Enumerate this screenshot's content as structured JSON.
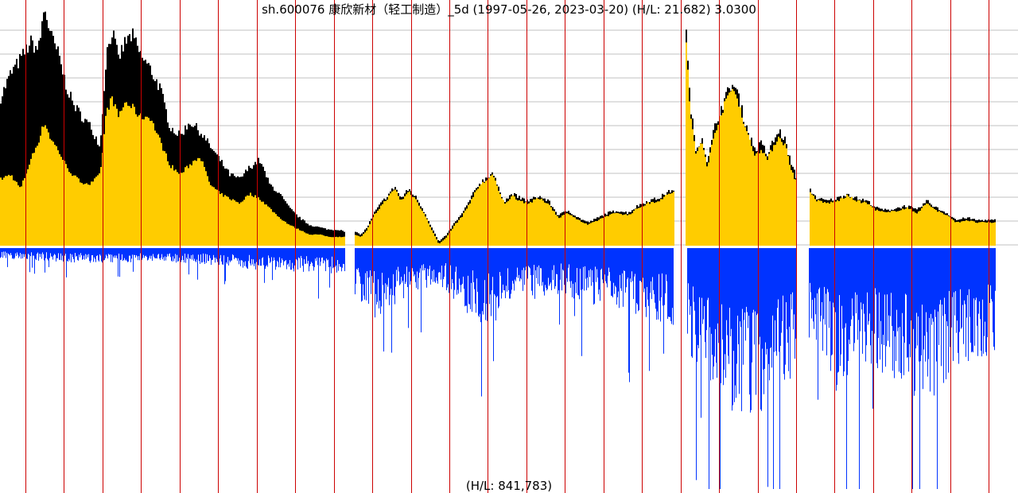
{
  "chart_data": {
    "type": "area",
    "title": "sh.600076 康欣新材（轻工制造）_5d (1997-05-26, 2023-03-20) (H/L: 21.682) 3.0300",
    "footer": "(H/L: 841,783)",
    "xlabel": "",
    "ylabel": "",
    "grid": true,
    "x_range": [
      "1997-05-26",
      "2023-03-20"
    ],
    "price_high": 21.682,
    "price_last": 3.03,
    "volume_high": 841783,
    "colors": {
      "price_high_area": "#000000",
      "price_close_area": "#ffcc00",
      "volume": "#0033ff",
      "year_lines": "#cc0000",
      "grid": "#c0c0c0"
    },
    "price_series": {
      "name": "",
      "points": [
        [
          0.0,
          0.62,
          0.28
        ],
        [
          0.01,
          0.72,
          0.3
        ],
        [
          0.02,
          0.78,
          0.24
        ],
        [
          0.03,
          0.85,
          0.36
        ],
        [
          0.038,
          0.82,
          0.44
        ],
        [
          0.044,
          1.0,
          0.52
        ],
        [
          0.05,
          0.88,
          0.45
        ],
        [
          0.058,
          0.8,
          0.4
        ],
        [
          0.065,
          0.68,
          0.34
        ],
        [
          0.072,
          0.6,
          0.3
        ],
        [
          0.08,
          0.55,
          0.27
        ],
        [
          0.09,
          0.5,
          0.26
        ],
        [
          0.1,
          0.42,
          0.3
        ],
        [
          0.106,
          0.8,
          0.56
        ],
        [
          0.112,
          0.9,
          0.62
        ],
        [
          0.118,
          0.78,
          0.54
        ],
        [
          0.125,
          0.85,
          0.6
        ],
        [
          0.132,
          0.88,
          0.58
        ],
        [
          0.14,
          0.8,
          0.54
        ],
        [
          0.15,
          0.74,
          0.54
        ],
        [
          0.16,
          0.66,
          0.44
        ],
        [
          0.17,
          0.5,
          0.34
        ],
        [
          0.18,
          0.46,
          0.3
        ],
        [
          0.19,
          0.52,
          0.34
        ],
        [
          0.2,
          0.48,
          0.38
        ],
        [
          0.21,
          0.42,
          0.26
        ],
        [
          0.22,
          0.36,
          0.22
        ],
        [
          0.23,
          0.3,
          0.2
        ],
        [
          0.24,
          0.28,
          0.18
        ],
        [
          0.25,
          0.33,
          0.22
        ],
        [
          0.26,
          0.36,
          0.2
        ],
        [
          0.27,
          0.26,
          0.16
        ],
        [
          0.28,
          0.22,
          0.12
        ],
        [
          0.29,
          0.16,
          0.09
        ],
        [
          0.3,
          0.12,
          0.07
        ],
        [
          0.31,
          0.09,
          0.05
        ],
        [
          0.32,
          0.08,
          0.05
        ],
        [
          0.33,
          0.07,
          0.04
        ],
        [
          0.34,
          0.07,
          0.04
        ],
        [
          0.346,
          0.06,
          0.04
        ],
        [
          0.352,
          null,
          null
        ],
        [
          0.356,
          0.06,
          0.05
        ],
        [
          0.362,
          0.05,
          0.04
        ],
        [
          0.368,
          0.08,
          0.07
        ],
        [
          0.375,
          0.14,
          0.13
        ],
        [
          0.382,
          0.18,
          0.17
        ],
        [
          0.39,
          0.22,
          0.21
        ],
        [
          0.396,
          0.25,
          0.24
        ],
        [
          0.402,
          0.2,
          0.19
        ],
        [
          0.41,
          0.24,
          0.23
        ],
        [
          0.418,
          0.2,
          0.19
        ],
        [
          0.426,
          0.14,
          0.13
        ],
        [
          0.434,
          0.07,
          0.06
        ],
        [
          0.44,
          0.02,
          0.01
        ],
        [
          0.448,
          0.05,
          0.04
        ],
        [
          0.456,
          0.1,
          0.09
        ],
        [
          0.464,
          0.14,
          0.13
        ],
        [
          0.472,
          0.2,
          0.19
        ],
        [
          0.48,
          0.26,
          0.25
        ],
        [
          0.486,
          0.28,
          0.27
        ],
        [
          0.494,
          0.31,
          0.3
        ],
        [
          0.5,
          0.24,
          0.23
        ],
        [
          0.506,
          0.19,
          0.18
        ],
        [
          0.514,
          0.22,
          0.21
        ],
        [
          0.522,
          0.2,
          0.19
        ],
        [
          0.53,
          0.19,
          0.18
        ],
        [
          0.54,
          0.21,
          0.2
        ],
        [
          0.55,
          0.19,
          0.18
        ],
        [
          0.56,
          0.13,
          0.12
        ],
        [
          0.57,
          0.15,
          0.14
        ],
        [
          0.58,
          0.12,
          0.11
        ],
        [
          0.59,
          0.1,
          0.09
        ],
        [
          0.6,
          0.12,
          0.11
        ],
        [
          0.61,
          0.14,
          0.13
        ],
        [
          0.62,
          0.15,
          0.14
        ],
        [
          0.63,
          0.14,
          0.13
        ],
        [
          0.64,
          0.17,
          0.16
        ],
        [
          0.65,
          0.19,
          0.18
        ],
        [
          0.66,
          0.2,
          0.19
        ],
        [
          0.668,
          0.22,
          0.21
        ],
        [
          0.676,
          0.24,
          0.23
        ],
        [
          0.682,
          null,
          null
        ],
        [
          0.688,
          0.92,
          0.88
        ],
        [
          0.692,
          0.62,
          0.58
        ],
        [
          0.698,
          0.4,
          0.38
        ],
        [
          0.704,
          0.46,
          0.44
        ],
        [
          0.71,
          0.35,
          0.33
        ],
        [
          0.716,
          0.48,
          0.46
        ],
        [
          0.722,
          0.56,
          0.54
        ],
        [
          0.728,
          0.62,
          0.6
        ],
        [
          0.734,
          0.68,
          0.66
        ],
        [
          0.74,
          0.64,
          0.62
        ],
        [
          0.746,
          0.54,
          0.52
        ],
        [
          0.752,
          0.46,
          0.44
        ],
        [
          0.758,
          0.4,
          0.38
        ],
        [
          0.764,
          0.43,
          0.41
        ],
        [
          0.77,
          0.38,
          0.36
        ],
        [
          0.776,
          0.44,
          0.42
        ],
        [
          0.782,
          0.48,
          0.46
        ],
        [
          0.788,
          0.44,
          0.42
        ],
        [
          0.794,
          0.34,
          0.32
        ],
        [
          0.8,
          0.28,
          0.26
        ],
        [
          0.806,
          null,
          null
        ],
        [
          0.812,
          0.24,
          0.23
        ],
        [
          0.82,
          0.2,
          0.19
        ],
        [
          0.83,
          0.19,
          0.18
        ],
        [
          0.84,
          0.2,
          0.19
        ],
        [
          0.85,
          0.22,
          0.21
        ],
        [
          0.86,
          0.2,
          0.19
        ],
        [
          0.87,
          0.19,
          0.18
        ],
        [
          0.88,
          0.16,
          0.15
        ],
        [
          0.89,
          0.15,
          0.14
        ],
        [
          0.9,
          0.16,
          0.15
        ],
        [
          0.91,
          0.17,
          0.16
        ],
        [
          0.92,
          0.15,
          0.14
        ],
        [
          0.93,
          0.19,
          0.18
        ],
        [
          0.94,
          0.16,
          0.15
        ],
        [
          0.95,
          0.14,
          0.13
        ],
        [
          0.96,
          0.11,
          0.1
        ],
        [
          0.97,
          0.12,
          0.11
        ],
        [
          0.98,
          0.11,
          0.1
        ],
        [
          0.99,
          0.11,
          0.1
        ],
        [
          1.0,
          0.11,
          0.1
        ]
      ]
    },
    "volume_profile": [
      [
        0.0,
        0.04
      ],
      [
        0.05,
        0.05
      ],
      [
        0.1,
        0.06
      ],
      [
        0.15,
        0.05
      ],
      [
        0.2,
        0.06
      ],
      [
        0.25,
        0.08
      ],
      [
        0.3,
        0.09
      ],
      [
        0.346,
        0.1
      ],
      [
        0.352,
        null
      ],
      [
        0.356,
        0.18
      ],
      [
        0.38,
        0.28
      ],
      [
        0.4,
        0.2
      ],
      [
        0.44,
        0.14
      ],
      [
        0.47,
        0.25
      ],
      [
        0.49,
        0.3
      ],
      [
        0.52,
        0.2
      ],
      [
        0.56,
        0.18
      ],
      [
        0.6,
        0.22
      ],
      [
        0.64,
        0.25
      ],
      [
        0.676,
        0.3
      ],
      [
        0.682,
        null
      ],
      [
        0.69,
        0.4
      ],
      [
        0.72,
        0.55
      ],
      [
        0.75,
        0.7
      ],
      [
        0.77,
        0.6
      ],
      [
        0.8,
        0.5
      ],
      [
        0.806,
        null
      ],
      [
        0.812,
        0.35
      ],
      [
        0.84,
        0.55
      ],
      [
        0.87,
        0.45
      ],
      [
        0.9,
        0.5
      ],
      [
        0.93,
        0.6
      ],
      [
        0.96,
        0.45
      ],
      [
        1.0,
        0.4
      ]
    ]
  }
}
